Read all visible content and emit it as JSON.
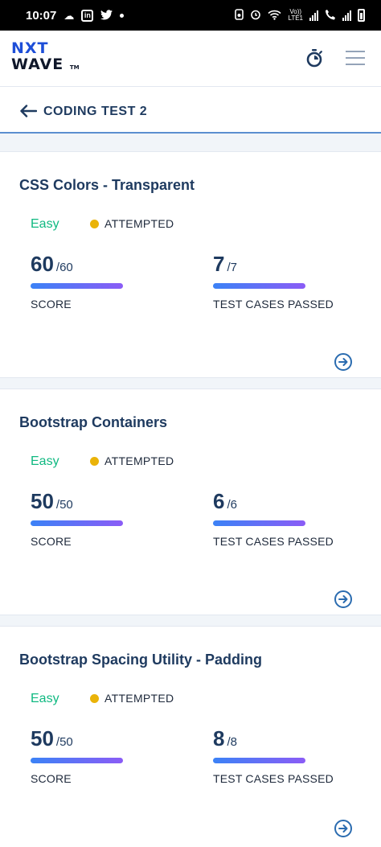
{
  "status_bar": {
    "time": "10:07",
    "left_icons": [
      "cloud-icon",
      "linkedin-icon",
      "twitter-icon",
      "dot-icon"
    ],
    "right_icons": [
      "nfc-icon",
      "alarm-icon",
      "wifi-icon",
      "signal-icon",
      "call-icon",
      "signal-icon",
      "battery-icon"
    ],
    "vo_label": "Vo))",
    "lte_label": "LTE1"
  },
  "header": {
    "logo_line1": "NXT",
    "logo_line2": "WAVE",
    "logo_tm": "TM"
  },
  "page": {
    "title": "CODING TEST 2"
  },
  "cards": [
    {
      "title": "CSS Colors - Transparent",
      "difficulty": "Easy",
      "status": "ATTEMPTED",
      "score": "60",
      "score_total": "/60",
      "score_label": "SCORE",
      "score_fraction": 1.0,
      "tests": "7",
      "tests_total": "/7",
      "tests_label": "TEST CASES PASSED",
      "tests_fraction": 1.0
    },
    {
      "title": "Bootstrap Containers",
      "difficulty": "Easy",
      "status": "ATTEMPTED",
      "score": "50",
      "score_total": "/50",
      "score_label": "SCORE",
      "score_fraction": 1.0,
      "tests": "6",
      "tests_total": "/6",
      "tests_label": "TEST CASES PASSED",
      "tests_fraction": 1.0
    },
    {
      "title": "Bootstrap Spacing Utility - Padding",
      "difficulty": "Easy",
      "status": "ATTEMPTED",
      "score": "50",
      "score_total": "/50",
      "score_label": "SCORE",
      "score_fraction": 1.0,
      "tests": "8",
      "tests_total": "/8",
      "tests_label": "TEST CASES PASSED",
      "tests_fraction": 1.0
    }
  ],
  "colors": {
    "brand_blue": "#1d4ed8",
    "title_navy": "#1e3a5f",
    "easy_green": "#10b981",
    "attempted_yellow": "#eab308",
    "bar_start": "#3b82f6",
    "bar_end": "#8b5cf6"
  }
}
